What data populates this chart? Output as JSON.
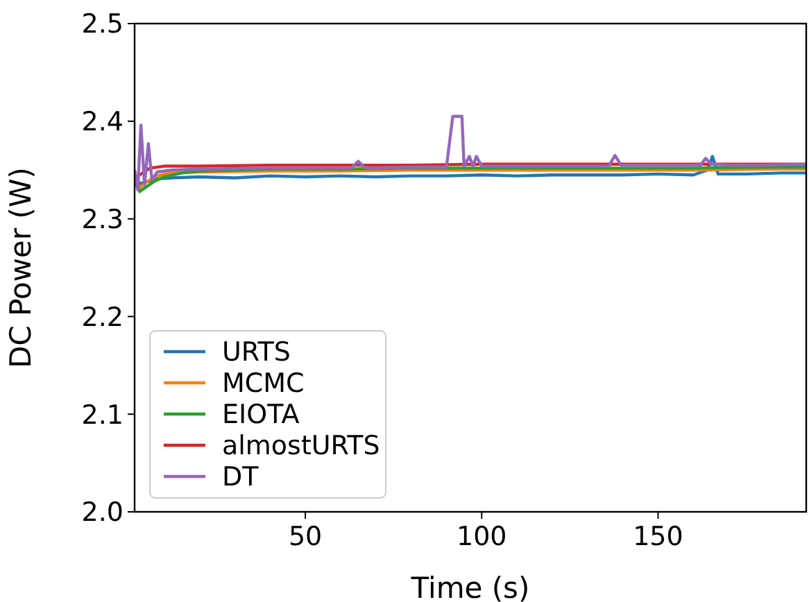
{
  "chart_data": {
    "type": "line",
    "xlabel": "Time (s)",
    "ylabel": "DC Power (W)",
    "xlim": [
      1.6,
      192
    ],
    "ylim": [
      2.0,
      2.5
    ],
    "xticks": [
      50,
      100,
      150
    ],
    "yticks": [
      {
        "value": 2.0,
        "label": "2.0"
      },
      {
        "value": 2.1,
        "label": "2.1"
      },
      {
        "value": 2.2,
        "label": "2.2"
      },
      {
        "value": 2.3,
        "label": "2.3"
      },
      {
        "value": 2.4,
        "label": "2.4"
      },
      {
        "value": 2.5,
        "label": "2.5"
      }
    ],
    "legend": "bottom left",
    "grid": false,
    "line_style": "solid",
    "series": [
      {
        "name": "URTS",
        "color": "#1f77b4",
        "x": [
          1.6,
          3,
          5,
          8,
          12,
          20,
          30,
          40,
          50,
          60,
          70,
          80,
          90,
          100,
          110,
          120,
          130,
          140,
          150,
          160,
          164,
          165.4,
          167,
          175,
          185,
          192
        ],
        "values": [
          2.345,
          2.336,
          2.338,
          2.341,
          2.342,
          2.343,
          2.342,
          2.344,
          2.343,
          2.344,
          2.343,
          2.344,
          2.344,
          2.345,
          2.344,
          2.345,
          2.345,
          2.345,
          2.346,
          2.345,
          2.35,
          2.364,
          2.346,
          2.346,
          2.347,
          2.347
        ]
      },
      {
        "name": "MCMC",
        "color": "#ff7f0e",
        "x": [
          1.6,
          3,
          5,
          8,
          12,
          20,
          40,
          60,
          80,
          100,
          120,
          140,
          160,
          180,
          192
        ],
        "values": [
          2.335,
          2.332,
          2.338,
          2.344,
          2.347,
          2.348,
          2.349,
          2.349,
          2.35,
          2.35,
          2.35,
          2.35,
          2.35,
          2.351,
          2.351
        ]
      },
      {
        "name": "EIOTA",
        "color": "#2ca02c",
        "x": [
          1.6,
          3,
          5,
          7,
          10,
          15,
          20,
          40,
          60,
          80,
          100,
          120,
          140,
          160,
          180,
          192
        ],
        "values": [
          2.34,
          2.328,
          2.333,
          2.338,
          2.343,
          2.347,
          2.349,
          2.351,
          2.351,
          2.352,
          2.352,
          2.352,
          2.352,
          2.352,
          2.353,
          2.353
        ]
      },
      {
        "name": "almostURTS",
        "color": "#d62728",
        "x": [
          1.6,
          3,
          6,
          10,
          20,
          40,
          60,
          80,
          100,
          120,
          140,
          160,
          180,
          192
        ],
        "values": [
          2.34,
          2.345,
          2.352,
          2.354,
          2.354,
          2.355,
          2.355,
          2.355,
          2.356,
          2.356,
          2.356,
          2.356,
          2.356,
          2.356
        ]
      },
      {
        "name": "DT",
        "color": "#9467bd",
        "x": [
          1.6,
          2.5,
          3.4,
          4.4,
          5.5,
          6.5,
          8,
          12,
          20,
          40,
          63,
          65,
          67,
          80,
          90,
          91.8,
          94.4,
          95,
          96.5,
          97.5,
          98.5,
          100,
          120,
          136,
          137.8,
          139.5,
          150,
          162,
          163.5,
          165,
          170,
          180,
          192
        ],
        "values": [
          2.35,
          2.33,
          2.396,
          2.335,
          2.377,
          2.34,
          2.348,
          2.35,
          2.351,
          2.352,
          2.352,
          2.359,
          2.352,
          2.353,
          2.353,
          2.405,
          2.405,
          2.354,
          2.364,
          2.354,
          2.364,
          2.354,
          2.354,
          2.354,
          2.365,
          2.355,
          2.355,
          2.355,
          2.362,
          2.356,
          2.355,
          2.355,
          2.356
        ]
      }
    ]
  }
}
